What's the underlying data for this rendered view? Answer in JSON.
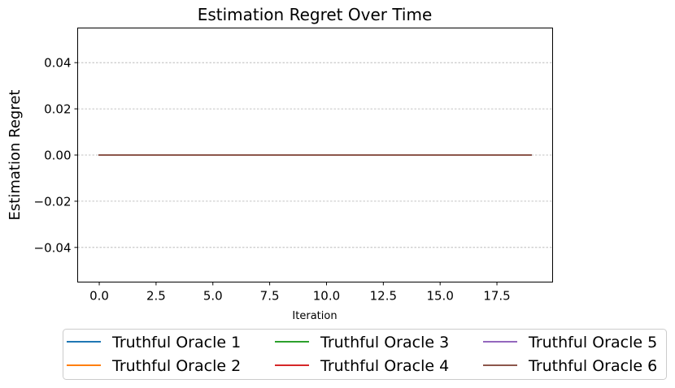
{
  "chart_data": {
    "type": "line",
    "title": "Estimation Regret Over Time",
    "xlabel": "Iteration",
    "ylabel": "Estimation Regret",
    "xlim": [
      -0.95,
      19.95
    ],
    "ylim": [
      -0.055,
      0.055
    ],
    "x_ticks": [
      0,
      2.5,
      5,
      7.5,
      10,
      12.5,
      15,
      17.5
    ],
    "x_tick_labels": [
      "0.0",
      "2.5",
      "5.0",
      "7.5",
      "10.0",
      "12.5",
      "15.0",
      "17.5"
    ],
    "y_ticks": [
      0.04,
      0.02,
      0,
      -0.02,
      -0.04
    ],
    "y_tick_labels": [
      "0.04",
      "0.02",
      "0.00",
      "−0.02",
      "−0.04"
    ],
    "grid": "y-dashed",
    "legend_position": "below",
    "x": [
      0,
      1,
      2,
      3,
      4,
      5,
      6,
      7,
      8,
      9,
      10,
      11,
      12,
      13,
      14,
      15,
      16,
      17,
      18,
      19
    ],
    "series": [
      {
        "name": "Truthful Oracle 1",
        "color": "#1f77b4",
        "values": [
          0,
          0,
          0,
          0,
          0,
          0,
          0,
          0,
          0,
          0,
          0,
          0,
          0,
          0,
          0,
          0,
          0,
          0,
          0,
          0
        ]
      },
      {
        "name": "Truthful Oracle 2",
        "color": "#ff7f0e",
        "values": [
          0,
          0,
          0,
          0,
          0,
          0,
          0,
          0,
          0,
          0,
          0,
          0,
          0,
          0,
          0,
          0,
          0,
          0,
          0,
          0
        ]
      },
      {
        "name": "Truthful Oracle 3",
        "color": "#2ca02c",
        "values": [
          0,
          0,
          0,
          0,
          0,
          0,
          0,
          0,
          0,
          0,
          0,
          0,
          0,
          0,
          0,
          0,
          0,
          0,
          0,
          0
        ]
      },
      {
        "name": "Truthful Oracle 4",
        "color": "#d62728",
        "values": [
          0,
          0,
          0,
          0,
          0,
          0,
          0,
          0,
          0,
          0,
          0,
          0,
          0,
          0,
          0,
          0,
          0,
          0,
          0,
          0
        ]
      },
      {
        "name": "Truthful Oracle 5",
        "color": "#9467bd",
        "values": [
          0,
          0,
          0,
          0,
          0,
          0,
          0,
          0,
          0,
          0,
          0,
          0,
          0,
          0,
          0,
          0,
          0,
          0,
          0,
          0
        ]
      },
      {
        "name": "Truthful Oracle 6",
        "color": "#8c564b",
        "values": [
          0,
          0,
          0,
          0,
          0,
          0,
          0,
          0,
          0,
          0,
          0,
          0,
          0,
          0,
          0,
          0,
          0,
          0,
          0,
          0
        ]
      }
    ]
  }
}
